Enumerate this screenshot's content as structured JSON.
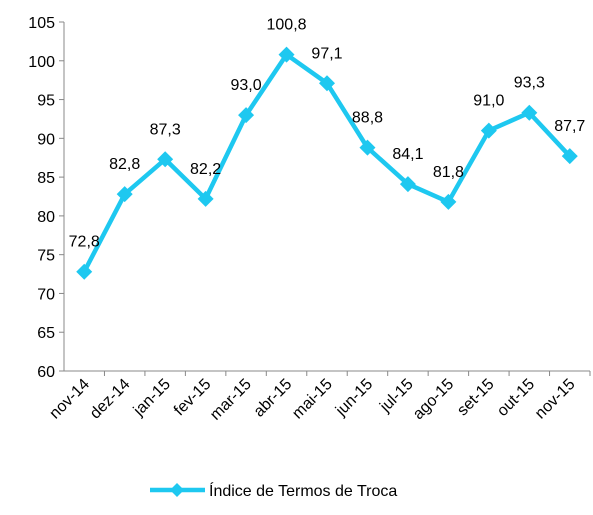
{
  "chart_data": {
    "type": "line",
    "categories": [
      "nov-14",
      "dez-14",
      "jan-15",
      "fev-15",
      "mar-15",
      "abr-15",
      "mai-15",
      "jun-15",
      "jul-15",
      "ago-15",
      "set-15",
      "out-15",
      "nov-15"
    ],
    "series": [
      {
        "name": "Índice de Termos de Troca",
        "color": "#1ec8f0",
        "values": [
          72.8,
          82.8,
          87.3,
          82.2,
          93.0,
          100.8,
          97.1,
          88.8,
          84.1,
          81.8,
          91.0,
          93.3,
          87.7
        ],
        "value_labels": [
          "72,8",
          "82,8",
          "87,3",
          "82,2",
          "93,0",
          "100,8",
          "97,1",
          "88,8",
          "84,1",
          "81,8",
          "91,0",
          "93,3",
          "87,7"
        ]
      }
    ],
    "ylim": [
      60,
      105
    ],
    "yticks": [
      60,
      65,
      70,
      75,
      80,
      85,
      90,
      95,
      100,
      105
    ],
    "grid": false,
    "legend": "bottom"
  }
}
